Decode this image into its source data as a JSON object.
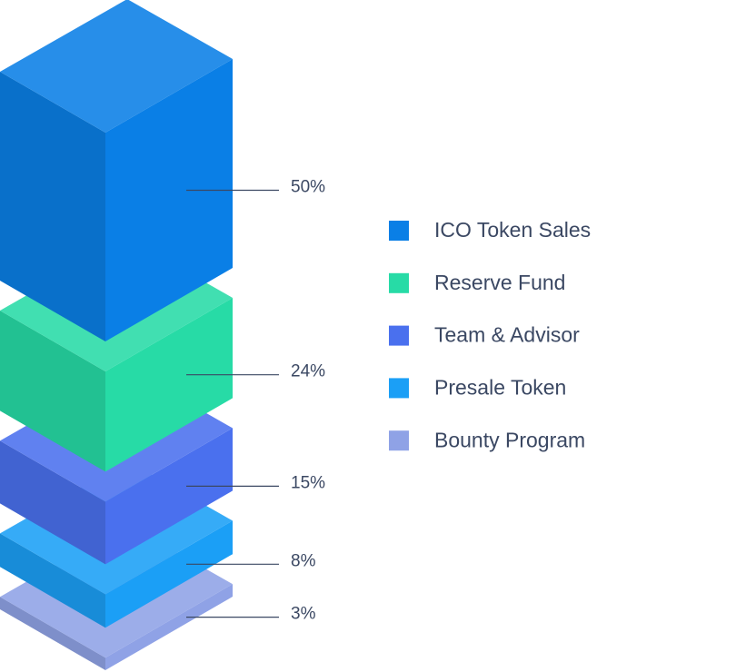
{
  "chart_data": {
    "type": "isometric",
    "categories": [
      "ICO Token Sales",
      "Reserve Fund",
      "Team & Advisor",
      "Presale Token",
      "Bounty Program"
    ],
    "values": [
      50,
      24,
      15,
      8,
      3
    ],
    "value_labels": [
      "50%",
      "24%",
      "15%",
      "8%",
      "3%"
    ],
    "colors": [
      "#0a7fe6",
      "#27dba6",
      "#4a70ee",
      "#1b9ff6",
      "#8fa2e6"
    ]
  }
}
